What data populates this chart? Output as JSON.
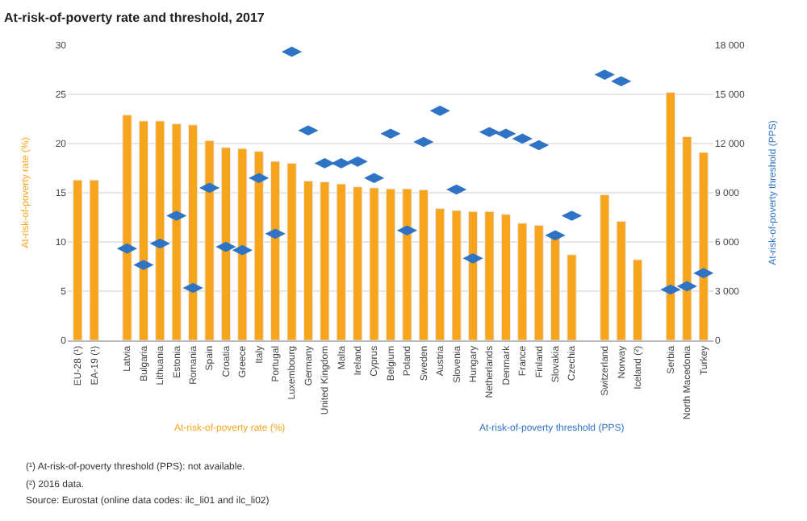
{
  "chart_data": {
    "type": "bar",
    "title": "At-risk-of-poverty rate and threshold, 2017",
    "categories": [
      "EU-28 (¹)",
      "EA-19 (¹)",
      null,
      "Latvia",
      "Bulgaria",
      "Lithuania",
      "Estonia",
      "Romania",
      "Spain",
      "Croatia",
      "Greece",
      "Italy",
      "Portugal",
      "Luxembourg",
      "Germany",
      "United Kingdom",
      "Malta",
      "Ireland",
      "Cyprus",
      "Belgium",
      "Poland",
      "Sweden",
      "Austria",
      "Slovenia",
      "Hungary",
      "Netherlands",
      "Denmark",
      "France",
      "Finland",
      "Slovakia",
      "Czechia",
      null,
      "Switzerland",
      "Norway",
      "Iceland (²)",
      null,
      "Serbia",
      "North Macedonia",
      "Turkey"
    ],
    "series": [
      {
        "name": "At-risk-of-poverty rate (%)",
        "color": "#f8a51c",
        "values": [
          16.3,
          16.3,
          null,
          22.9,
          22.3,
          22.3,
          22.0,
          21.9,
          20.3,
          19.6,
          19.5,
          19.2,
          18.2,
          18.0,
          16.2,
          16.1,
          15.9,
          15.6,
          15.5,
          15.4,
          15.4,
          15.3,
          13.4,
          13.2,
          13.1,
          13.1,
          12.8,
          11.9,
          11.7,
          10.9,
          8.7,
          null,
          14.8,
          12.1,
          8.2,
          null,
          25.2,
          20.7,
          19.1
        ]
      },
      {
        "name": "At-risk-of-poverty threshold (PPS)",
        "type": "scatter",
        "axis": "y2",
        "color": "#2f73c4",
        "values": [
          null,
          null,
          null,
          5600,
          4600,
          5900,
          7600,
          3200,
          9300,
          5700,
          5500,
          9900,
          6500,
          17600,
          12800,
          10800,
          10800,
          10900,
          9900,
          12600,
          6700,
          12100,
          14000,
          9200,
          5000,
          12700,
          12600,
          12300,
          11900,
          6400,
          7600,
          null,
          16200,
          15800,
          null,
          null,
          3100,
          3300,
          4100
        ]
      }
    ],
    "ylabel": "At-risk-of-poverty rate (%)",
    "y2label": "At-risk-of-poverty threshold (PPS)",
    "ylim": [
      0,
      30
    ],
    "yticks": [
      0,
      5,
      10,
      15,
      20,
      25,
      30
    ],
    "y2lim": [
      0,
      18000
    ],
    "y2ticks": [
      {
        "value": 0,
        "label": "0"
      },
      {
        "value": 3000,
        "label": "3 000"
      },
      {
        "value": 6000,
        "label": "6 000"
      },
      {
        "value": 9000,
        "label": "9 000"
      },
      {
        "value": 12000,
        "label": "12 000"
      },
      {
        "value": 15000,
        "label": "15 000"
      },
      {
        "value": 18000,
        "label": "18 000"
      }
    ],
    "grid": "y",
    "legend": "bottom",
    "annotations": [
      "(¹) At-risk-of-poverty threshold (PPS): not available.",
      "(²) 2016 data.",
      "Source: Eurostat (online data codes: ilc_li01 and ilc_li02)"
    ]
  }
}
